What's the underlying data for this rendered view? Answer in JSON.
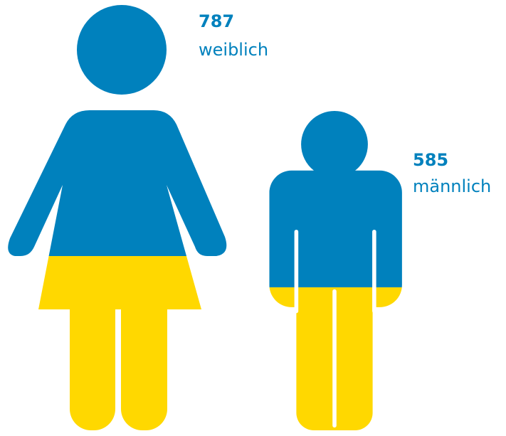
{
  "chart_data": {
    "type": "pictogram",
    "categories": [
      "weiblich",
      "männlich"
    ],
    "values": [
      787,
      585
    ],
    "colors": [
      "#0081bd",
      "#ffd800"
    ]
  }
}
